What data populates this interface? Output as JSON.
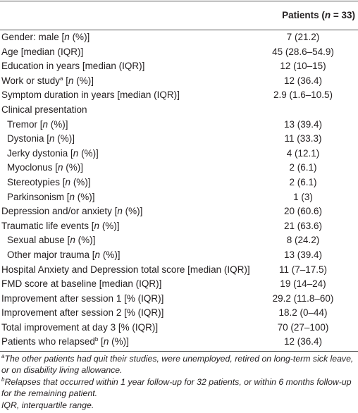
{
  "table": {
    "header": "Patients (n = 33)",
    "rows": [
      {
        "label": "Gender: male [n (%)]",
        "value": "7 (21.2)"
      },
      {
        "label": "Age [median (IQR)]",
        "value": "45 (28.6–54.9)"
      },
      {
        "label": "Education in years [median (IQR)]",
        "value": "12 (10–15)"
      },
      {
        "label": "Work or study",
        "sup": "a",
        "label_tail": " [n (%)]",
        "value": "12 (36.4)"
      },
      {
        "label": "Symptom duration in years [median (IQR)]",
        "value": "2.9 (1.6–10.5)"
      },
      {
        "label": "Clinical presentation",
        "subrows": [
          {
            "label": "Tremor [n (%)]",
            "value": "13 (39.4)"
          },
          {
            "label": "Dystonia [n (%)]",
            "value": "11 (33.3)"
          },
          {
            "label": "Jerky dystonia [n (%)]",
            "value": "4 (12.1)"
          },
          {
            "label": "Myoclonus [n (%)]",
            "value": "2 (6.1)"
          },
          {
            "label": "Stereotypies [n (%)]",
            "value": "2 (6.1)"
          },
          {
            "label": "Parkinsonism [n (%)]",
            "value": "1 (3)"
          }
        ]
      },
      {
        "label": "Depression and/or anxiety [n (%)]",
        "value": "20 (60.6)"
      },
      {
        "label": "Traumatic life events [n (%)]",
        "value": "21 (63.6)",
        "subrows": [
          {
            "label": "Sexual abuse [n (%)]",
            "value": "8 (24.2)"
          },
          {
            "label": "Other major trauma [n (%)]",
            "value": "13 (39.4)"
          }
        ]
      },
      {
        "label": "Hospital Anxiety and Depression total score [median (IQR)]",
        "value": "11 (7–17.5)"
      },
      {
        "label": "FMD score at baseline [median (IQR)]",
        "value": "19 (14–24)"
      },
      {
        "label": "Improvement after session 1 [% (IQR)]",
        "value": "29.2 (11.8–60)"
      },
      {
        "label": "Improvement after session 2 [% (IQR)]",
        "value": "18.2 (0–44)"
      },
      {
        "label": "Total improvement at day 3 [% (IQR)]",
        "value": "70 (27–100)"
      },
      {
        "label": "Patients who relapsed",
        "sup": "b",
        "label_tail": " [n (%)]",
        "value": "12 (36.4)"
      }
    ],
    "footnotes": [
      {
        "sup": "a",
        "text": "The other patients had quit their studies, were unemployed, retired on long-term sick leave, or on disability living allowance."
      },
      {
        "sup": "b",
        "text": "Relapses that occurred within 1 year follow-up for 32 patients, or within 6 months follow-up for the remaining patient."
      },
      {
        "text": "IQR, interquartile range."
      }
    ]
  }
}
